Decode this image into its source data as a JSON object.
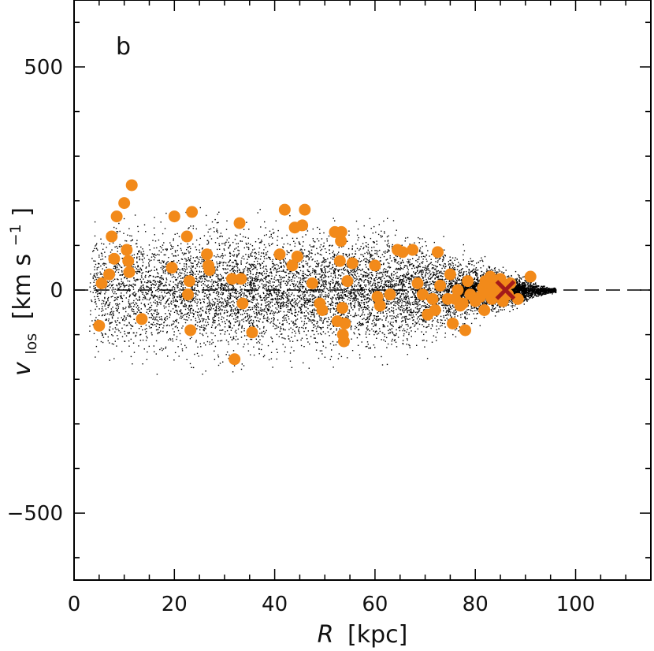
{
  "chart_data": {
    "type": "scatter",
    "panel_label": "b",
    "xlabel": {
      "symbol": "R",
      "unit": "[kpc]"
    },
    "ylabel": {
      "symbol": "v",
      "subscript": "los",
      "unit_prefix": "[km s",
      "unit_exp": "−1",
      "unit_suffix": "]"
    },
    "xlim": [
      0,
      115
    ],
    "ylim": [
      -650,
      650
    ],
    "x_ticks": [
      0,
      20,
      40,
      60,
      80,
      100
    ],
    "y_ticks": [
      -500,
      0,
      500
    ],
    "x_tick_labels": [
      "0",
      "20",
      "40",
      "60",
      "80",
      "100"
    ],
    "y_tick_labels": [
      "−500",
      "0",
      "500"
    ],
    "reference_line": {
      "y": 0,
      "style": "dashed"
    },
    "colors": {
      "highlight": "#f28a1a",
      "marker_x": "#a41a1a",
      "background_points": "#000000"
    },
    "background_points_description": "dense cloud of small black points filling an envelope from R≈3 to R≈96 kpc, widest (|v|≈280) at small R, narrowing toward R≈90",
    "series": [
      {
        "marker": "orange-circle",
        "points": [
          [
            5,
            -80
          ],
          [
            5.5,
            15
          ],
          [
            7,
            35
          ],
          [
            7.5,
            120
          ],
          [
            8,
            70
          ],
          [
            8.5,
            165
          ],
          [
            10,
            195
          ],
          [
            10.5,
            90
          ],
          [
            10.8,
            65
          ],
          [
            11,
            40
          ],
          [
            11.5,
            235
          ],
          [
            13.5,
            -65
          ],
          [
            19.5,
            50
          ],
          [
            20,
            165
          ],
          [
            22.5,
            120
          ],
          [
            22.7,
            -10
          ],
          [
            23,
            20
          ],
          [
            23.2,
            -90
          ],
          [
            23.5,
            175
          ],
          [
            26.5,
            80
          ],
          [
            26.8,
            55
          ],
          [
            27,
            45
          ],
          [
            31.5,
            25
          ],
          [
            32,
            -155
          ],
          [
            33,
            150
          ],
          [
            33.3,
            25
          ],
          [
            33.6,
            -30
          ],
          [
            35.5,
            -95
          ],
          [
            41,
            80
          ],
          [
            42,
            180
          ],
          [
            43.5,
            55
          ],
          [
            44,
            140
          ],
          [
            44.5,
            75
          ],
          [
            45.5,
            145
          ],
          [
            46,
            180
          ],
          [
            47.5,
            15
          ],
          [
            49,
            -30
          ],
          [
            49.5,
            -45
          ],
          [
            52,
            130
          ],
          [
            52.5,
            -70
          ],
          [
            53,
            65
          ],
          [
            53.2,
            110
          ],
          [
            53.3,
            130
          ],
          [
            53.5,
            -40
          ],
          [
            53.6,
            -100
          ],
          [
            53.8,
            -115
          ],
          [
            54,
            -75
          ],
          [
            54.5,
            20
          ],
          [
            55.5,
            60
          ],
          [
            60,
            55
          ],
          [
            60.5,
            -15
          ],
          [
            61,
            -35
          ],
          [
            63,
            -10
          ],
          [
            64.5,
            90
          ],
          [
            65.5,
            85
          ],
          [
            67.5,
            90
          ],
          [
            68.5,
            15
          ],
          [
            69.5,
            -10
          ],
          [
            70.5,
            -55
          ],
          [
            71.5,
            -20
          ],
          [
            72,
            -45
          ],
          [
            72.5,
            85
          ],
          [
            73,
            10
          ],
          [
            74.5,
            -20
          ],
          [
            75,
            35
          ],
          [
            75.5,
            -75
          ],
          [
            76,
            -20
          ],
          [
            76.5,
            0
          ],
          [
            77,
            -35
          ],
          [
            77.5,
            -30
          ],
          [
            78,
            -90
          ],
          [
            78.5,
            20
          ],
          [
            79,
            -10
          ],
          [
            80,
            -25
          ],
          [
            81,
            -15
          ],
          [
            81.5,
            5
          ],
          [
            81.8,
            -45
          ],
          [
            82,
            20
          ],
          [
            82.3,
            -5
          ],
          [
            82.6,
            15
          ],
          [
            83,
            30
          ],
          [
            83.3,
            -20
          ],
          [
            83.6,
            0
          ],
          [
            84,
            10
          ],
          [
            84.5,
            -10
          ],
          [
            85,
            25
          ],
          [
            85.5,
            -25
          ],
          [
            86,
            5
          ],
          [
            86.5,
            -10
          ],
          [
            87,
            15
          ],
          [
            88.5,
            -20
          ],
          [
            91,
            30
          ]
        ]
      },
      {
        "marker": "dark-red-x",
        "points": [
          [
            86,
            0
          ]
        ]
      }
    ]
  }
}
